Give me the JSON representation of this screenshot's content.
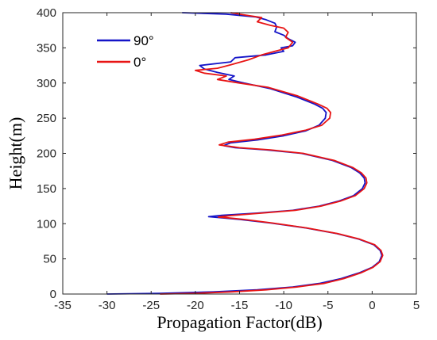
{
  "chart_data": {
    "type": "line",
    "title": "",
    "xlabel": "Propagation Factor(dB)",
    "ylabel": "Height(m)",
    "xlim": [
      -35,
      5
    ],
    "ylim": [
      0,
      400
    ],
    "x_ticks": [
      -35,
      -30,
      -25,
      -20,
      -15,
      -10,
      -5,
      0,
      5
    ],
    "y_ticks": [
      0,
      50,
      100,
      150,
      200,
      250,
      300,
      350,
      400
    ],
    "x_tick_labels": [
      "-35",
      "-30",
      "-25",
      "-20",
      "-15",
      "-10",
      "-5",
      "0",
      "5"
    ],
    "y_tick_labels": [
      "0",
      "50",
      "100",
      "150",
      "200",
      "250",
      "300",
      "350",
      "400"
    ],
    "grid": false,
    "legend_position": "top-left",
    "series": [
      {
        "name": "90°",
        "color": "#1414c8",
        "points": [
          [
            -30,
            0
          ],
          [
            -24,
            1
          ],
          [
            -18,
            3
          ],
          [
            -13,
            6
          ],
          [
            -9,
            10
          ],
          [
            -6,
            15
          ],
          [
            -3.5,
            22
          ],
          [
            -1.5,
            30
          ],
          [
            0,
            38
          ],
          [
            0.8,
            46
          ],
          [
            1.1,
            55
          ],
          [
            0.9,
            62
          ],
          [
            0.2,
            70
          ],
          [
            -1.5,
            78
          ],
          [
            -4,
            86
          ],
          [
            -7.5,
            94
          ],
          [
            -11.5,
            101
          ],
          [
            -15,
            106
          ],
          [
            -17.5,
            109
          ],
          [
            -18.5,
            110
          ],
          [
            -17,
            112
          ],
          [
            -13,
            115
          ],
          [
            -9,
            119
          ],
          [
            -6,
            125
          ],
          [
            -3.8,
            132
          ],
          [
            -2.1,
            140
          ],
          [
            -1.1,
            150
          ],
          [
            -0.8,
            158
          ],
          [
            -0.9,
            165
          ],
          [
            -1.4,
            172
          ],
          [
            -2.4,
            180
          ],
          [
            -4.5,
            190
          ],
          [
            -8,
            200
          ],
          [
            -12,
            205
          ],
          [
            -15.5,
            208
          ],
          [
            -16.8,
            211
          ],
          [
            -16,
            215
          ],
          [
            -13,
            219
          ],
          [
            -10,
            225
          ],
          [
            -7.5,
            232
          ],
          [
            -6,
            240
          ],
          [
            -5.3,
            250
          ],
          [
            -5.2,
            258
          ],
          [
            -5.6,
            264
          ],
          [
            -6.5,
            270
          ],
          [
            -8.5,
            280
          ],
          [
            -11.5,
            292
          ],
          [
            -14.5,
            300
          ],
          [
            -16.2,
            305
          ],
          [
            -15.6,
            310
          ],
          [
            -17.5,
            315
          ],
          [
            -19,
            320
          ],
          [
            -19.5,
            325
          ],
          [
            -16,
            330
          ],
          [
            -15.5,
            336
          ],
          [
            -12,
            340
          ],
          [
            -10,
            345
          ],
          [
            -10.3,
            350
          ],
          [
            -9,
            353
          ],
          [
            -8.7,
            358
          ],
          [
            -9.5,
            363
          ],
          [
            -10,
            368
          ],
          [
            -11,
            373
          ],
          [
            -10.8,
            380
          ],
          [
            -11,
            385
          ],
          [
            -12,
            390
          ],
          [
            -13.2,
            394
          ],
          [
            -16.5,
            398
          ],
          [
            -21.5,
            400
          ]
        ]
      },
      {
        "name": "0°",
        "color": "#e81414",
        "points": [
          [
            -24,
            0
          ],
          [
            -20,
            1
          ],
          [
            -16,
            3
          ],
          [
            -12,
            6
          ],
          [
            -8.5,
            10
          ],
          [
            -5.5,
            15
          ],
          [
            -3.2,
            22
          ],
          [
            -1.3,
            30
          ],
          [
            0.1,
            38
          ],
          [
            0.9,
            46
          ],
          [
            1.2,
            55
          ],
          [
            1,
            62
          ],
          [
            0.3,
            70
          ],
          [
            -1.4,
            78
          ],
          [
            -3.9,
            86
          ],
          [
            -7.4,
            94
          ],
          [
            -11.3,
            101
          ],
          [
            -14.5,
            106
          ],
          [
            -16.5,
            108.5
          ],
          [
            -17.4,
            109.5
          ],
          [
            -16,
            111.5
          ],
          [
            -12.5,
            115
          ],
          [
            -8.7,
            119
          ],
          [
            -5.8,
            125
          ],
          [
            -3.6,
            132
          ],
          [
            -1.9,
            140
          ],
          [
            -0.9,
            150
          ],
          [
            -0.6,
            158
          ],
          [
            -0.7,
            165
          ],
          [
            -1.2,
            172
          ],
          [
            -2.2,
            180
          ],
          [
            -4.3,
            190
          ],
          [
            -7.8,
            200
          ],
          [
            -11.5,
            205
          ],
          [
            -15,
            208
          ],
          [
            -17.3,
            212
          ],
          [
            -16.3,
            216
          ],
          [
            -13.3,
            220
          ],
          [
            -10.2,
            226
          ],
          [
            -7.5,
            233
          ],
          [
            -5.7,
            240
          ],
          [
            -4.8,
            250
          ],
          [
            -4.7,
            258
          ],
          [
            -5.1,
            264
          ],
          [
            -6.1,
            270
          ],
          [
            -8.5,
            282
          ],
          [
            -11.8,
            294
          ],
          [
            -15,
            300
          ],
          [
            -17.5,
            305
          ],
          [
            -16.5,
            310
          ],
          [
            -19,
            314
          ],
          [
            -20,
            318
          ],
          [
            -17.5,
            321
          ],
          [
            -16,
            326
          ],
          [
            -14,
            333
          ],
          [
            -12.5,
            340
          ],
          [
            -11,
            345
          ],
          [
            -9.5,
            350
          ],
          [
            -9,
            358
          ],
          [
            -9.8,
            365
          ],
          [
            -9.5,
            372
          ],
          [
            -10,
            378
          ],
          [
            -11.5,
            382
          ],
          [
            -13,
            387
          ],
          [
            -12.5,
            393
          ],
          [
            -14,
            396
          ],
          [
            -16,
            400
          ]
        ]
      }
    ]
  }
}
